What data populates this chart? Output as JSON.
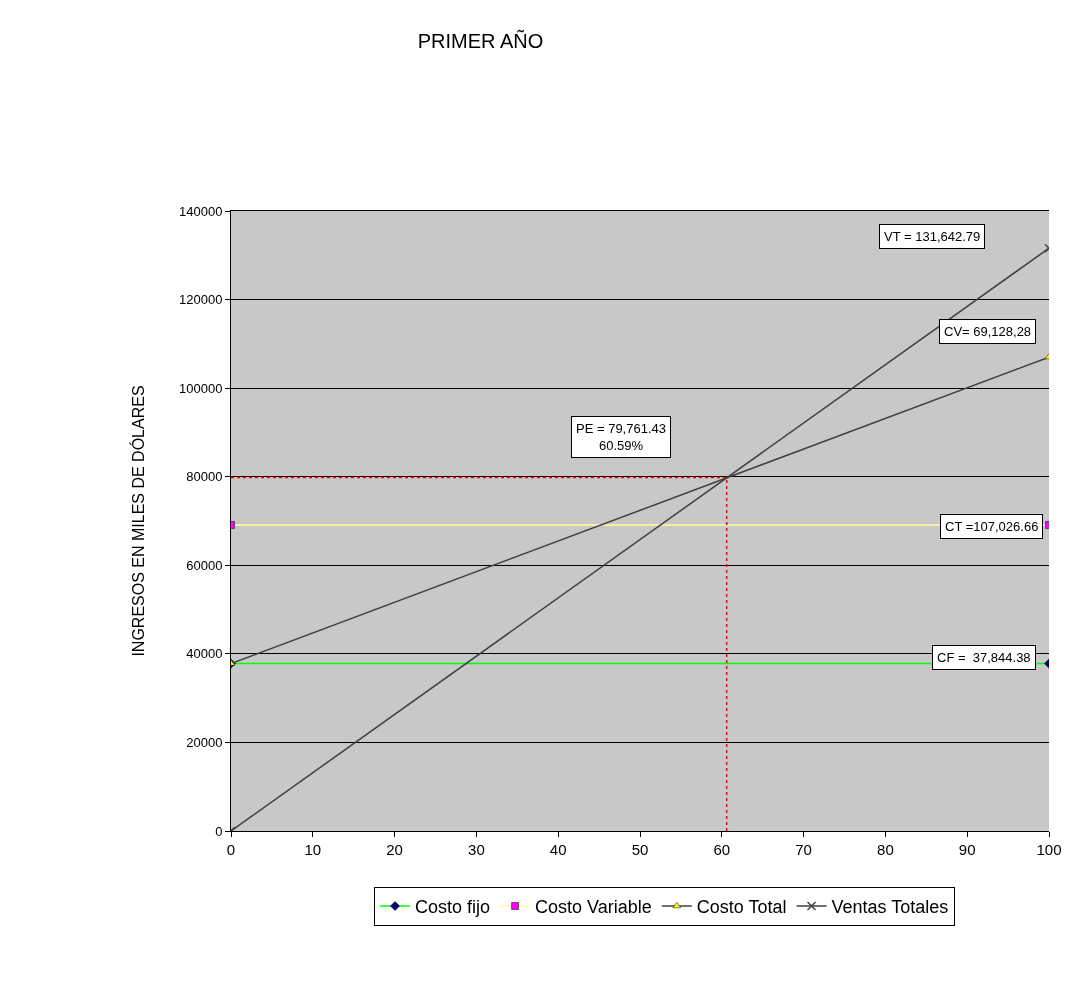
{
  "chart_data": {
    "type": "line",
    "title": "PRIMER AÑO",
    "ylabel": "INGRESOS EN MILES DE DÓLARES",
    "x": [
      0,
      100
    ],
    "xlim": [
      0,
      100
    ],
    "xticks": [
      0,
      10,
      20,
      30,
      40,
      50,
      60,
      70,
      80,
      90,
      100
    ],
    "ylim": [
      0,
      140000
    ],
    "yticks": [
      0,
      20000,
      40000,
      60000,
      80000,
      100000,
      120000,
      140000
    ],
    "grid": "y",
    "legend": "bottom",
    "series": [
      {
        "name": "Costo fijo",
        "color": "#00ff00",
        "colors": [
          "#000080",
          "#000080"
        ],
        "marker": "diamond",
        "values": [
          37800,
          37800
        ]
      },
      {
        "name": "Costo Variable",
        "color": "#ffff99",
        "colors": [
          "#ff00ff",
          "#ff00ff"
        ],
        "marker": "square",
        "values": [
          69100,
          69100
        ]
      },
      {
        "name": "Costo Total",
        "color": "#404040",
        "colors": [
          "#ffff00",
          "#ffff00"
        ],
        "marker": "triangle",
        "values": [
          37800,
          107000
        ]
      },
      {
        "name": "Ventas Totales",
        "color": "#404040",
        "colors": [
          "#404040",
          "#404040"
        ],
        "marker": "cross",
        "values": [
          0,
          131600
        ]
      }
    ],
    "ref_lines": [
      {
        "axis": "y",
        "value": 79800,
        "color": "#ff0000",
        "line_style": "dotted"
      },
      {
        "axis": "x",
        "value": 60.6,
        "color": "#ff0000",
        "line_style": "dotted"
      }
    ],
    "annotations": [
      "VT = 131,642.79",
      "CV= 69,128,28",
      "PE = 79,761.43\n60.59%",
      "CT =107,026.66",
      "CF =  37,844.38"
    ]
  }
}
